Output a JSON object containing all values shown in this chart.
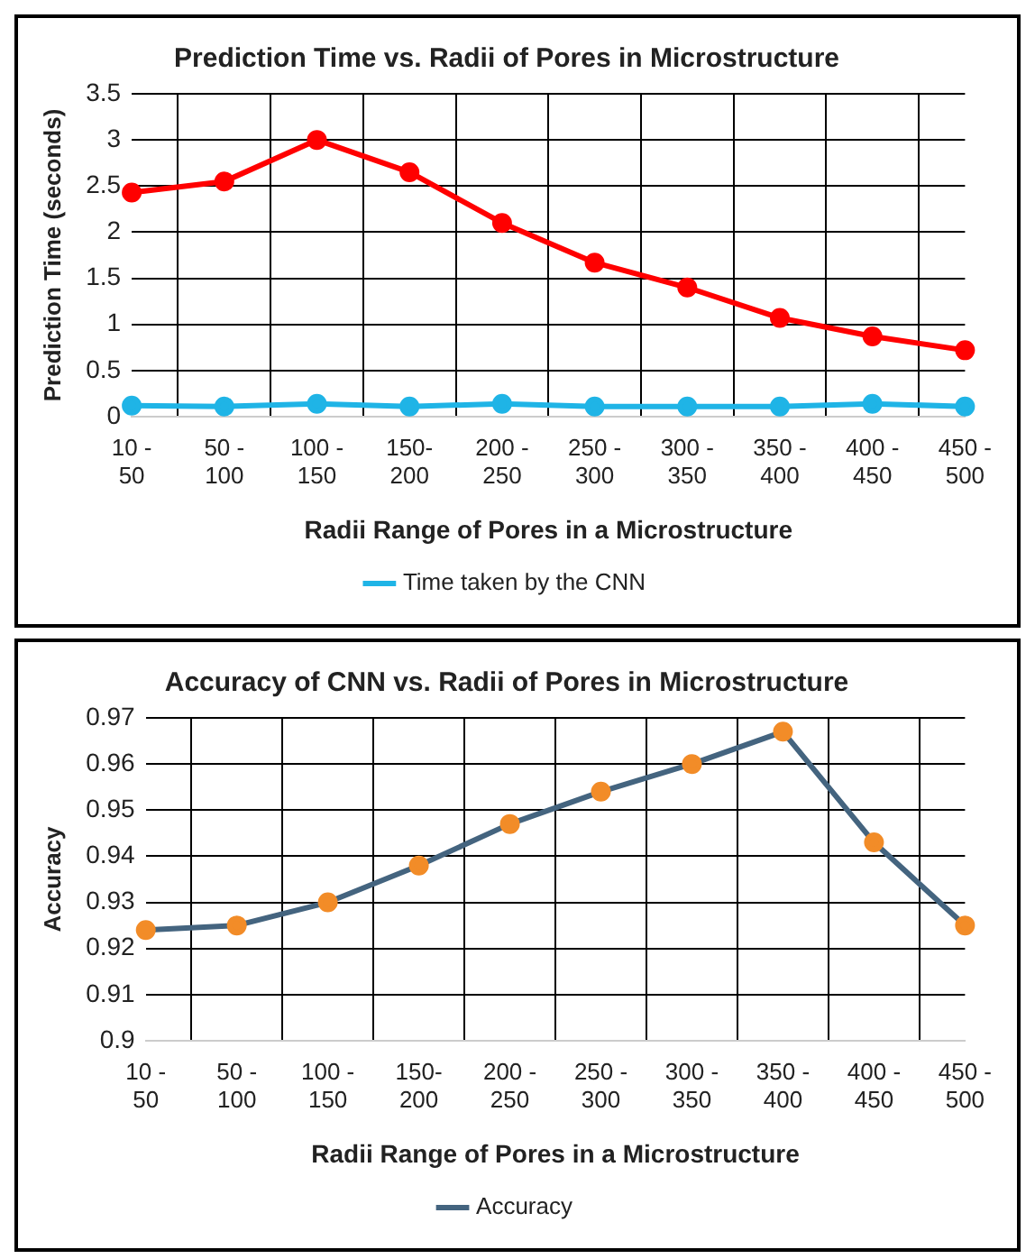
{
  "chart_data": [
    {
      "type": "line",
      "title": "Prediction Time vs. Radii of Pores in Microstructure",
      "xlabel": "Radii Range of Pores in a Microstructure",
      "ylabel": "Prediction Time (seconds)",
      "categories": [
        "10 - 50",
        "50 - 100",
        "100 - 150",
        "150-200",
        "200 - 250",
        "250 - 300",
        "300 - 350",
        "350 - 400",
        "400 - 450",
        "450 - 500"
      ],
      "series": [
        {
          "name": "Time taken by the CNN",
          "color": "#1fb4e6",
          "values": [
            0.12,
            0.11,
            0.14,
            0.11,
            0.14,
            0.11,
            0.11,
            0.11,
            0.14,
            0.11
          ]
        },
        {
          "color": "#ff0000",
          "values": [
            2.43,
            2.55,
            3.0,
            2.65,
            2.1,
            1.67,
            1.4,
            1.07,
            0.87,
            0.72
          ]
        }
      ],
      "ylim": [
        0,
        3.5
      ],
      "yticks": [
        0,
        0.5,
        1,
        1.5,
        2,
        2.5,
        3,
        3.5
      ],
      "grid": true,
      "legend": "bottom",
      "marker": "circle"
    },
    {
      "type": "line",
      "title": "Accuracy of CNN vs. Radii of Pores in Microstructure",
      "xlabel": "Radii Range of Pores in a Microstructure",
      "ylabel": "Accuracy",
      "categories": [
        "10 - 50",
        "50 - 100",
        "100 - 150",
        "150-200",
        "200 - 250",
        "250 - 300",
        "300 - 350",
        "350 - 400",
        "400 - 450",
        "450 - 500"
      ],
      "series": [
        {
          "name": "Accuracy",
          "color": "#44647f",
          "colors": [
            "#f28c28",
            "#f28c28",
            "#f28c28",
            "#f28c28",
            "#f28c28",
            "#f28c28",
            "#f28c28",
            "#f28c28",
            "#f28c28",
            "#f28c28"
          ],
          "values": [
            0.924,
            0.925,
            0.93,
            0.938,
            0.947,
            0.954,
            0.96,
            0.967,
            0.943,
            0.925
          ]
        }
      ],
      "ylim": [
        0.9,
        0.97
      ],
      "yticks": [
        0.9,
        0.91,
        0.92,
        0.93,
        0.94,
        0.95,
        0.96,
        0.97
      ],
      "grid": true,
      "legend": "bottom",
      "marker": "circle"
    }
  ]
}
